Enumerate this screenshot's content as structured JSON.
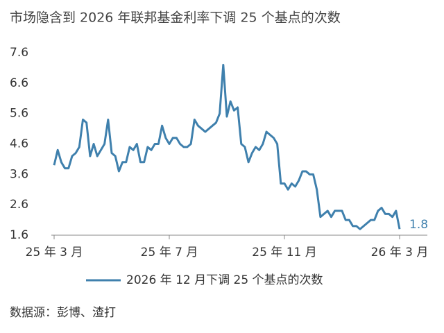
{
  "chart_data": {
    "type": "line",
    "title": "市场隐含到 2026 年联邦基金利率下调 25 个基点的次数",
    "categories": [
      "25 年 3 月",
      null,
      null,
      null,
      null,
      null,
      null,
      null,
      null,
      null,
      null,
      null,
      null,
      null,
      null,
      null,
      null,
      null,
      null,
      null,
      null,
      null,
      null,
      null,
      null,
      null,
      null,
      null,
      null,
      null,
      null,
      null,
      "25 年 7 月",
      null,
      null,
      null,
      null,
      null,
      null,
      null,
      null,
      null,
      null,
      null,
      null,
      null,
      null,
      null,
      null,
      null,
      null,
      null,
      null,
      null,
      null,
      null,
      null,
      null,
      null,
      null,
      null,
      null,
      null,
      null,
      "25 年 11 月",
      null,
      null,
      null,
      null,
      null,
      null,
      null,
      null,
      null,
      null,
      null,
      null,
      null,
      null,
      null,
      null,
      null,
      null,
      null,
      null,
      null,
      null,
      null,
      null,
      null,
      null,
      null,
      null,
      null,
      null,
      null,
      "26 年 3 月"
    ],
    "series": [
      {
        "name": "2026 年 12 月下调 25 个基点的次数",
        "color": "#3f80ad",
        "values": [
          3.9,
          4.4,
          4.0,
          3.8,
          3.8,
          4.2,
          4.3,
          4.5,
          5.4,
          5.3,
          4.2,
          4.6,
          4.2,
          4.4,
          4.6,
          5.4,
          4.3,
          4.2,
          3.7,
          4.0,
          4.0,
          4.5,
          4.4,
          4.6,
          4.0,
          4.0,
          4.5,
          4.4,
          4.6,
          4.6,
          5.2,
          4.8,
          4.6,
          4.8,
          4.8,
          4.6,
          4.5,
          4.5,
          4.6,
          5.4,
          5.2,
          5.1,
          5.0,
          5.1,
          5.2,
          5.3,
          5.6,
          7.2,
          5.5,
          6.0,
          5.7,
          5.8,
          4.6,
          4.5,
          4.0,
          4.3,
          4.5,
          4.4,
          4.6,
          5.0,
          4.9,
          4.8,
          4.6,
          3.3,
          3.3,
          3.1,
          3.3,
          3.2,
          3.4,
          3.7,
          3.7,
          3.6,
          3.6,
          3.1,
          2.2,
          2.3,
          2.4,
          2.2,
          2.4,
          2.4,
          2.4,
          2.1,
          2.1,
          1.9,
          1.9,
          1.8,
          1.9,
          2.0,
          2.1,
          2.1,
          2.4,
          2.5,
          2.3,
          2.3,
          2.2,
          2.4,
          1.8
        ]
      }
    ],
    "ylim": [
      1.6,
      7.6
    ],
    "yticks": [
      1.6,
      2.6,
      3.6,
      4.6,
      5.6,
      6.6,
      7.6
    ],
    "grid": false,
    "legend": "bottom",
    "source": "数据源：彭博、渣打"
  }
}
